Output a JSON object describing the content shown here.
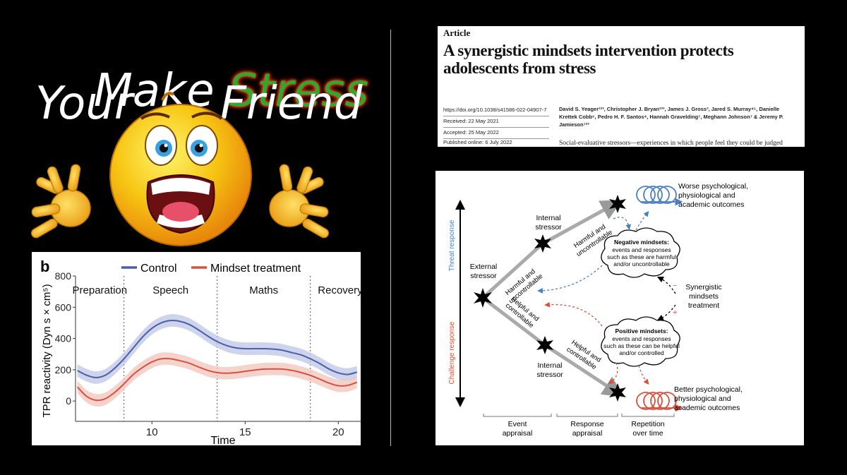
{
  "title": {
    "line1_prefix": "Make ",
    "line1_highlight": "Stress",
    "line2_left": "Your",
    "line2_right": "Friend"
  },
  "colors": {
    "stress_fill": "#2fa82f",
    "stress_glow": "#ff3b1a",
    "control": "#4a5fa8",
    "mindset": "#d9503f",
    "threat": "#4a7fc1",
    "challenge": "#d9503f"
  },
  "icons": [
    "screaming-emoji-icon",
    "threat-spiral-icon",
    "challenge-spiral-icon"
  ],
  "article": {
    "kicker": "Article",
    "title": "A synergistic mindsets intervention protects adolescents from stress",
    "doi": "https://doi.org/10.1038/s41586-022-04907-7",
    "received": "Received: 22 May 2021",
    "accepted": "Accepted: 25 May 2022",
    "published": "Published online: 6 July 2022",
    "authors": "David S. Yeager¹²³, Christopher J. Bryan²³³, James J. Gross³, Jared S. Murray⁴⁵, Danielle Krettek Cobb⁶, Pedro H. F. Santos⁴, Hannah Gravelding⁷, Meghann Johnson⁷ & Jeremy P. Jamieson⁷²³",
    "abstract_start": "Social-evaluative stressors—experiences in which people feel they could be judged"
  },
  "chart_data": {
    "type": "line",
    "panel_label": "b",
    "xlabel": "Time",
    "ylabel": "TPR reactivity (Dyn s × cm⁵)",
    "xlim": [
      5.9,
      21.2
    ],
    "ylim": [
      -130,
      800
    ],
    "xticks": [
      10,
      15,
      20
    ],
    "yticks": [
      0,
      200,
      400,
      600,
      800
    ],
    "phase_boundaries": [
      8.5,
      13.5,
      18.5
    ],
    "phases": [
      {
        "label": "Preparation",
        "center": 7.2
      },
      {
        "label": "Speech",
        "center": 11.0
      },
      {
        "label": "Maths",
        "center": 16.0
      },
      {
        "label": "Recovery",
        "center": 20.1
      }
    ],
    "band_halfwidth": 40,
    "series": [
      {
        "name": "Control",
        "x": [
          6,
          6.5,
          7,
          7.5,
          8,
          8.5,
          9,
          9.5,
          10,
          10.5,
          11,
          11.5,
          12,
          12.5,
          13,
          13.5,
          14,
          14.5,
          15,
          15.5,
          16,
          16.5,
          17,
          17.5,
          18,
          18.5,
          19,
          19.5,
          20,
          20.5,
          21
        ],
        "values": [
          195,
          165,
          150,
          165,
          210,
          270,
          340,
          410,
          465,
          500,
          515,
          510,
          490,
          455,
          415,
          380,
          355,
          340,
          335,
          335,
          335,
          332,
          325,
          310,
          295,
          270,
          240,
          205,
          180,
          170,
          185
        ]
      },
      {
        "name": "Mindset treatment",
        "x": [
          6,
          6.5,
          7,
          7.5,
          8,
          8.5,
          9,
          9.5,
          10,
          10.5,
          11,
          11.5,
          12,
          12.5,
          13,
          13.5,
          14,
          14.5,
          15,
          15.5,
          16,
          16.5,
          17,
          17.5,
          18,
          18.5,
          19,
          19.5,
          20,
          20.5,
          21
        ],
        "values": [
          90,
          30,
          5,
          15,
          55,
          110,
          170,
          215,
          250,
          270,
          270,
          258,
          242,
          218,
          196,
          182,
          178,
          182,
          190,
          198,
          204,
          205,
          204,
          196,
          182,
          164,
          140,
          115,
          98,
          100,
          120
        ]
      }
    ]
  },
  "diagram": {
    "threat_label": "Threat response",
    "challenge_label": "Challenge response",
    "external_stressor": [
      "External",
      "stressor"
    ],
    "internal_stressor_top": [
      "Internal",
      "stressor"
    ],
    "internal_stressor_bottom": [
      "Internal",
      "stressor"
    ],
    "harmful1": [
      "Harmful and",
      "uncontrollable"
    ],
    "harmful2": [
      "Harmful and",
      "uncontrollable"
    ],
    "helpful1": [
      "Helpful and",
      "controllable"
    ],
    "helpful2": [
      "Helpful and",
      "controllable"
    ],
    "worse_outcomes": [
      "Worse psychological,",
      "physiological and",
      "academic outcomes"
    ],
    "better_outcomes": [
      "Better psychological,",
      "physiological and",
      "academic outcomes"
    ],
    "negative_title": "Negative mindsets:",
    "negative_body": [
      "events and responses",
      "such as these are harmful",
      "and/or uncontrollable"
    ],
    "positive_title": "Positive mindsets:",
    "positive_body": [
      "events and responses",
      "such as these can be helpful",
      "and/or controlled"
    ],
    "synergistic": [
      "Synergistic",
      "mindsets",
      "treatment"
    ],
    "minus_sign": "−",
    "plus_sign": "+",
    "stages": [
      {
        "lines": [
          "Event",
          "appraisal"
        ]
      },
      {
        "lines": [
          "Response",
          "appraisal"
        ]
      },
      {
        "lines": [
          "Repetition",
          "over time"
        ]
      }
    ]
  }
}
